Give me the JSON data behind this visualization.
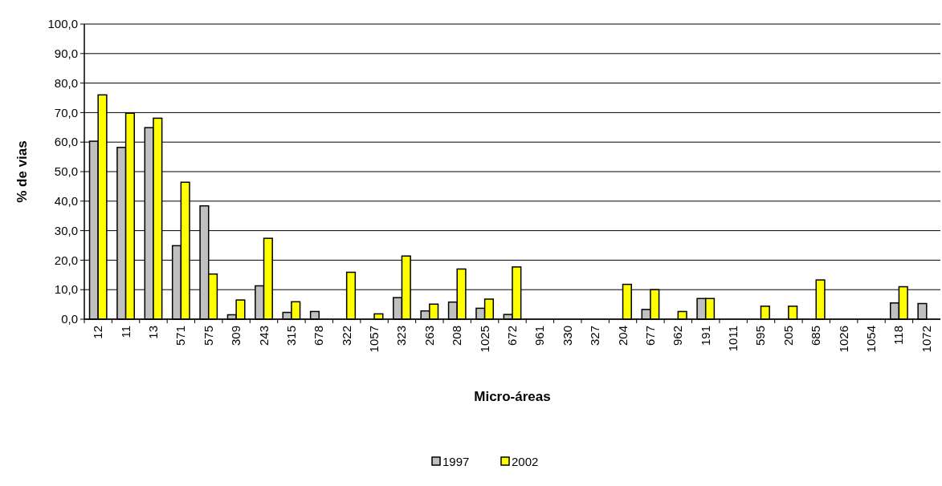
{
  "chart_data": {
    "type": "bar",
    "xlabel": "Micro-áreas",
    "ylabel": "% de vias",
    "categories": [
      "12",
      "11",
      "13",
      "571",
      "575",
      "309",
      "243",
      "315",
      "678",
      "322",
      "1057",
      "323",
      "263",
      "208",
      "1025",
      "672",
      "961",
      "330",
      "327",
      "204",
      "677",
      "962",
      "191",
      "1011",
      "595",
      "205",
      "685",
      "1026",
      "1054",
      "118",
      "1072"
    ],
    "series": [
      {
        "name": "1997",
        "color": "#c0c0c0",
        "values": [
          60.3,
          58.2,
          64.9,
          24.9,
          38.4,
          1.5,
          11.3,
          2.3,
          2.6,
          0,
          0,
          7.3,
          2.8,
          5.8,
          3.7,
          1.6,
          0,
          0,
          0,
          0,
          3.3,
          0,
          7.0,
          0,
          0,
          0,
          0,
          0,
          0,
          5.5,
          5.3
        ]
      },
      {
        "name": "2002",
        "color": "#ffff00",
        "values": [
          76.0,
          69.8,
          68.1,
          46.4,
          15.3,
          6.5,
          27.4,
          5.9,
          0,
          15.9,
          1.8,
          21.4,
          5.1,
          17.0,
          6.8,
          17.7,
          0,
          0,
          0,
          11.8,
          10.0,
          2.6,
          7.0,
          0,
          4.4,
          4.4,
          13.3,
          0,
          0,
          11.0,
          0
        ]
      }
    ],
    "ylim": [
      0,
      100
    ],
    "yticks": [
      {
        "value": 0,
        "label": "0,0"
      },
      {
        "value": 10,
        "label": "10,0"
      },
      {
        "value": 20,
        "label": "20,0"
      },
      {
        "value": 30,
        "label": "30,0"
      },
      {
        "value": 40,
        "label": "40,0"
      },
      {
        "value": 50,
        "label": "50,0"
      },
      {
        "value": 60,
        "label": "60,0"
      },
      {
        "value": 70,
        "label": "70,0"
      },
      {
        "value": 80,
        "label": "80,0"
      },
      {
        "value": 90,
        "label": "90,0"
      },
      {
        "value": 100,
        "label": "100,0"
      }
    ],
    "grid": "y",
    "legend": "bottom"
  }
}
